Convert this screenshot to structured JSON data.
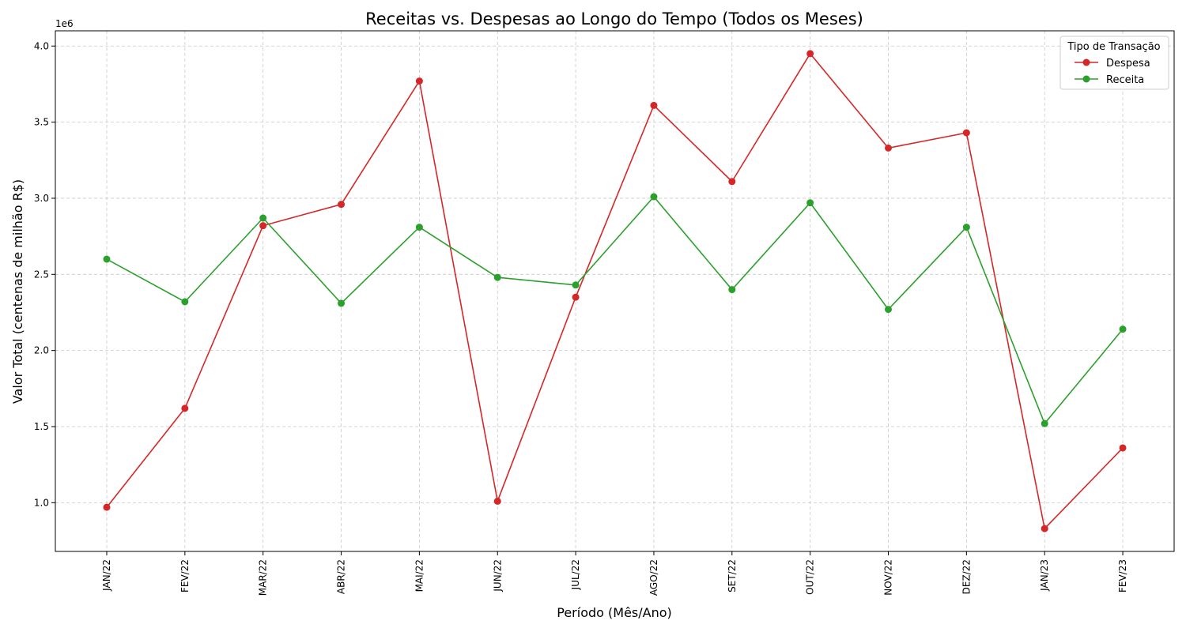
{
  "chart_data": {
    "type": "line",
    "title": "Receitas vs. Despesas ao Longo do Tempo (Todos os Meses)",
    "xlabel": "Período (Mês/Ano)",
    "ylabel": "Valor Total (centenas de milhão R$)",
    "y_offset_label": "1e6",
    "categories": [
      "JAN/22",
      "FEV/22",
      "MAR/22",
      "ABR/22",
      "MAI/22",
      "JUN/22",
      "JUL/22",
      "AGO/22",
      "SET/22",
      "OUT/22",
      "NOV/22",
      "DEZ/22",
      "JAN/23",
      "FEV/23"
    ],
    "ylim": [
      0.68,
      4.1
    ],
    "yticks": [
      1.0,
      1.5,
      2.0,
      2.5,
      3.0,
      3.5,
      4.0
    ],
    "ytick_labels": [
      "1.0",
      "1.5",
      "2.0",
      "2.5",
      "3.0",
      "3.5",
      "4.0"
    ],
    "grid": true,
    "legend": {
      "title": "Tipo de Transação",
      "position": "top-right"
    },
    "series": [
      {
        "name": "Despesa",
        "color": "#d62728",
        "values": [
          0.97,
          1.62,
          2.82,
          2.96,
          3.77,
          1.01,
          2.35,
          3.61,
          3.11,
          3.95,
          3.33,
          3.43,
          0.83,
          1.36
        ]
      },
      {
        "name": "Receita",
        "color": "#2ca02c",
        "values": [
          2.6,
          2.32,
          2.87,
          2.31,
          2.81,
          2.48,
          2.43,
          3.01,
          2.4,
          2.97,
          2.27,
          2.81,
          1.52,
          2.14
        ]
      }
    ]
  }
}
